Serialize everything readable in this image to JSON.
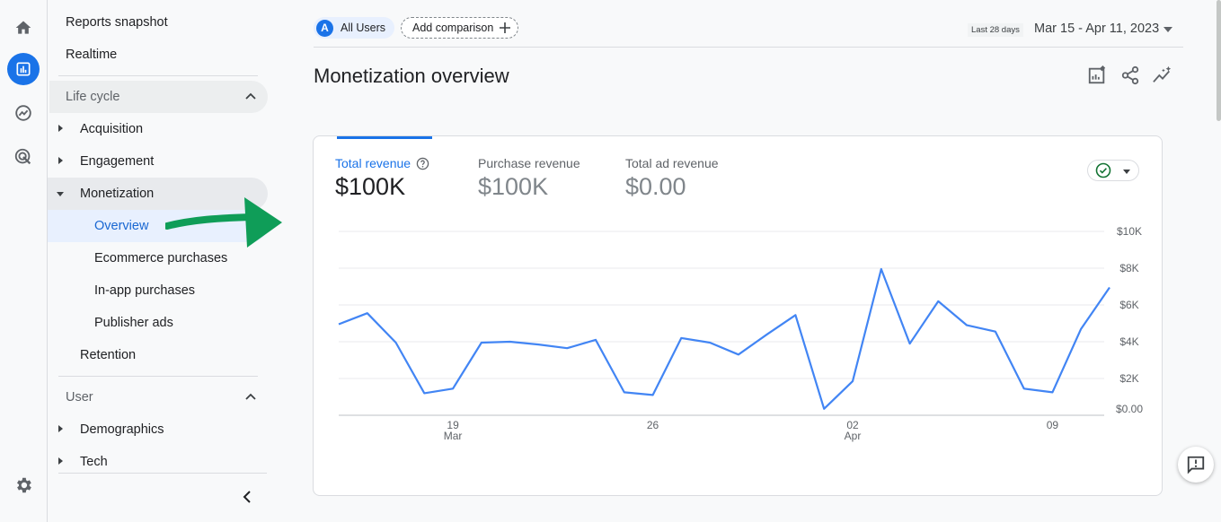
{
  "rail": {
    "icons": [
      "home-icon",
      "reports-icon",
      "explore-icon",
      "advertising-icon",
      "settings-icon"
    ]
  },
  "nav": {
    "reports_snapshot": "Reports snapshot",
    "realtime": "Realtime",
    "lifecycle": {
      "title": "Life cycle",
      "items": {
        "acquisition": "Acquisition",
        "engagement": "Engagement",
        "monetization": "Monetization",
        "overview": "Overview",
        "ecommerce": "Ecommerce purchases",
        "inapp": "In-app purchases",
        "publisher": "Publisher ads",
        "retention": "Retention"
      }
    },
    "user": {
      "title": "User",
      "items": {
        "demographics": "Demographics",
        "tech": "Tech"
      }
    }
  },
  "header": {
    "segment_badge": "A",
    "segment_label": "All Users",
    "add_comparison": "Add comparison",
    "date_preset": "Last 28 days",
    "date_range": "Mar 15 - Apr 11, 2023",
    "page_title": "Monetization overview"
  },
  "card": {
    "metrics": [
      {
        "label": "Total revenue",
        "value": "$100K"
      },
      {
        "label": "Purchase revenue",
        "value": "$100K"
      },
      {
        "label": "Total ad revenue",
        "value": "$0.00"
      }
    ]
  },
  "colors": {
    "accent": "#1a73e8",
    "line": "#4285f4",
    "arrow": "#0f9d58",
    "check": "#137333"
  },
  "chart_data": {
    "type": "line",
    "series": [
      {
        "values": [
          4950,
          5550,
          3950,
          1200,
          1450,
          3950,
          4000,
          3850,
          3650,
          4100,
          1250,
          1100,
          4200,
          3950,
          3300,
          4400,
          5450,
          350,
          1850,
          7950,
          3900,
          6200,
          4900,
          4550,
          1450,
          1250,
          4700,
          6950
        ]
      }
    ],
    "x_ticks": [
      {
        "index": 4,
        "day": "19",
        "month": "Mar"
      },
      {
        "index": 11,
        "day": "26",
        "month": ""
      },
      {
        "index": 18,
        "day": "02",
        "month": "Apr"
      },
      {
        "index": 25,
        "day": "09",
        "month": ""
      }
    ],
    "y_ticks": [
      "$0.00",
      "$2K",
      "$4K",
      "$6K",
      "$8K",
      "$10K"
    ],
    "ylim": [
      0,
      10000
    ],
    "grid": true
  }
}
